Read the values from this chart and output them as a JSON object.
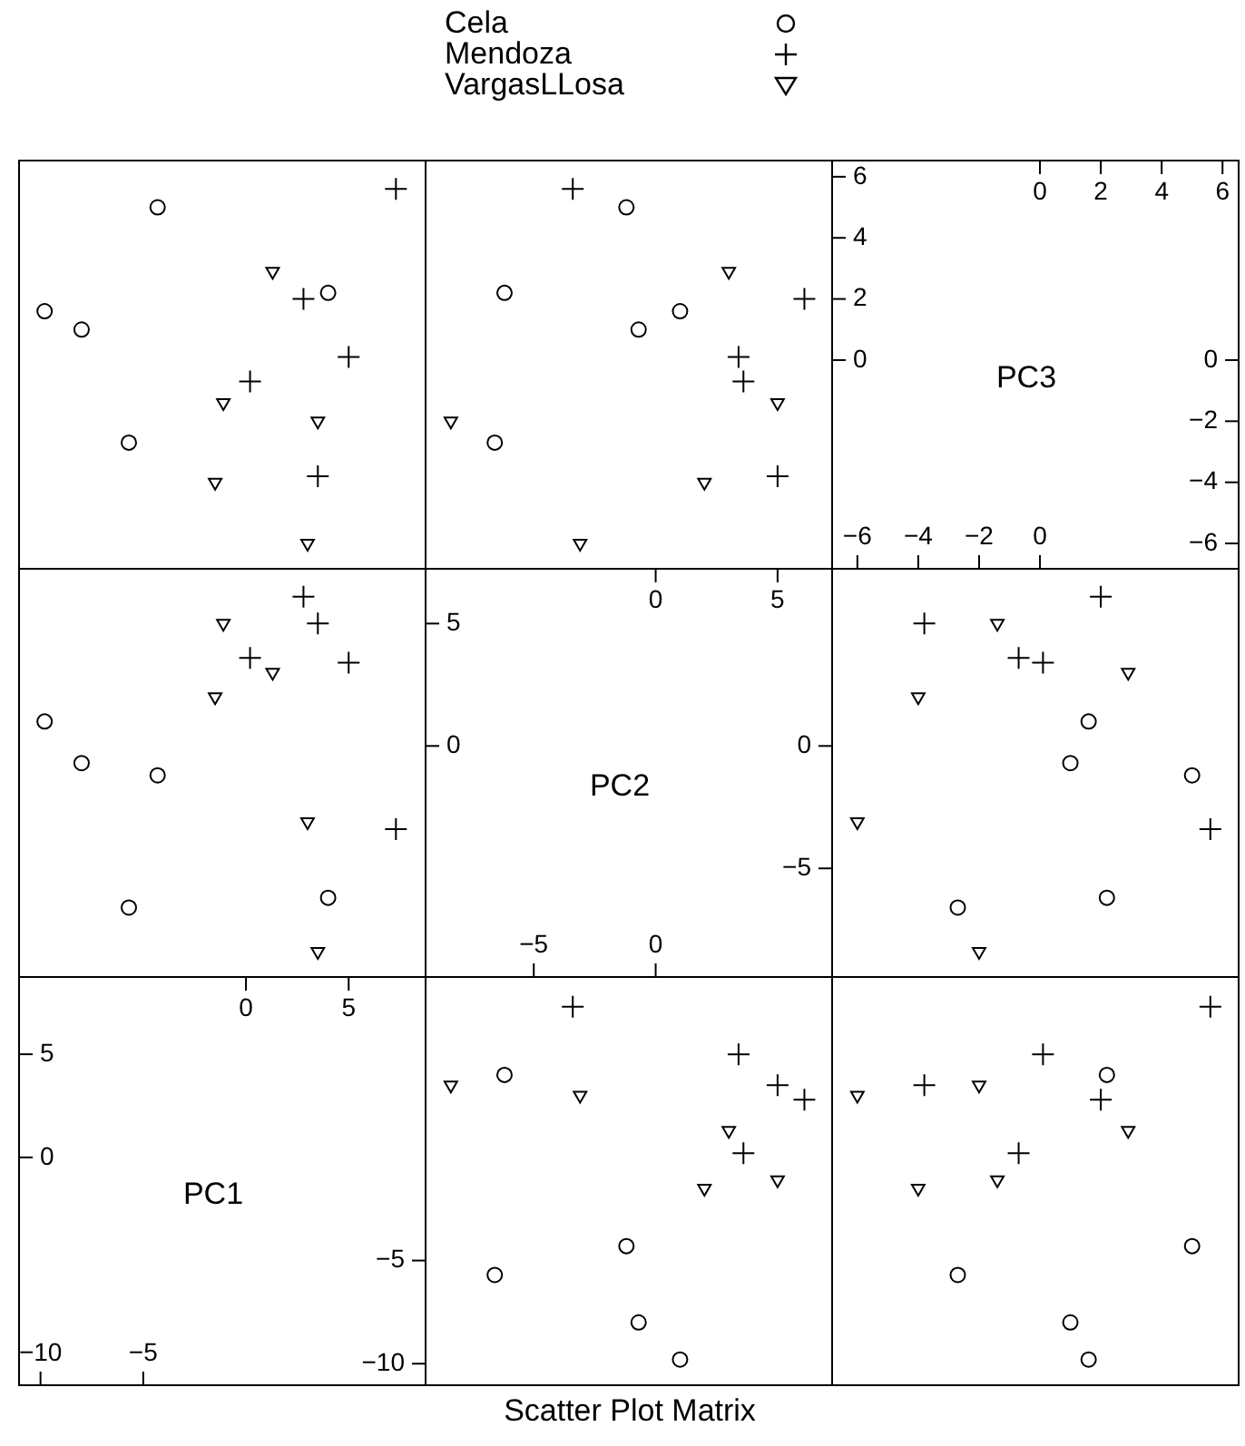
{
  "chart_data": [
    {
      "type": "scatter",
      "legend": "top",
      "xlim": [
        -11,
        8.7
      ],
      "ylim": [
        -6.8,
        6.5
      ],
      "series": [
        {
          "name": "Cela",
          "color": "#000000",
          "marker": "circle",
          "x": [
            -4.3,
            -9.8,
            -8.0,
            4.0,
            -5.7
          ],
          "values": [
            5.0,
            1.6,
            1.0,
            2.2,
            -2.7
          ]
        },
        {
          "name": "Mendoza",
          "color": "#000000",
          "marker": "cross",
          "x": [
            7.3,
            2.8,
            5.0,
            0.2,
            3.5
          ],
          "values": [
            5.6,
            2.0,
            0.1,
            -0.7,
            -3.8
          ]
        },
        {
          "name": "VargasLLosa",
          "color": "#000000",
          "marker": "triangle",
          "x": [
            1.3,
            -1.1,
            3.5,
            -1.5,
            3.0
          ],
          "values": [
            2.9,
            -1.4,
            -2.0,
            -4.0,
            -6.0
          ]
        }
      ]
    },
    {
      "type": "scatter",
      "xlim": [
        -9.4,
        7.2
      ],
      "ylim": [
        -6.8,
        6.5
      ],
      "series": [
        {
          "color": "#000000",
          "marker": "circle",
          "x": [
            -1.2,
            1.0,
            -0.7,
            -6.2,
            -6.6
          ],
          "values": [
            5.0,
            1.6,
            1.0,
            2.2,
            -2.7
          ]
        },
        {
          "color": "#000000",
          "marker": "cross",
          "x": [
            -3.4,
            6.1,
            3.4,
            3.6,
            5.0
          ],
          "values": [
            5.6,
            2.0,
            0.1,
            -0.7,
            -3.8
          ]
        },
        {
          "color": "#000000",
          "marker": "triangle",
          "x": [
            3.0,
            5.0,
            -8.4,
            2.0,
            -3.1
          ],
          "values": [
            2.9,
            -1.4,
            -2.0,
            -4.0,
            -6.0
          ]
        }
      ]
    },
    {
      "type": "scatter",
      "title": "PC3",
      "xlim": [
        -6.8,
        6.5
      ],
      "xticks": [
        -6,
        -4,
        -2,
        0
      ],
      "x2lim": [
        -6.8,
        6.5
      ],
      "x2ticks": [
        0,
        2,
        4,
        6
      ],
      "ylim": [
        -6.8,
        6.5
      ],
      "yticks": [
        0,
        2,
        4,
        6
      ],
      "y2lim": [
        -6.8,
        6.5
      ],
      "y2ticks": [
        -6,
        -4,
        -2,
        0
      ]
    },
    {
      "type": "scatter",
      "xlim": [
        -11,
        8.7
      ],
      "ylim": [
        -9.4,
        7.2
      ],
      "series": [
        {
          "color": "#000000",
          "marker": "circle",
          "x": [
            -4.3,
            -9.8,
            -8.0,
            4.0,
            -5.7
          ],
          "values": [
            -1.2,
            1.0,
            -0.7,
            -6.2,
            -6.6
          ]
        },
        {
          "color": "#000000",
          "marker": "cross",
          "x": [
            7.3,
            2.8,
            5.0,
            0.2,
            3.5
          ],
          "values": [
            -3.4,
            6.1,
            3.4,
            3.6,
            5.0
          ]
        },
        {
          "color": "#000000",
          "marker": "triangle",
          "x": [
            1.3,
            -1.1,
            3.5,
            -1.5,
            3.0
          ],
          "values": [
            3.0,
            5.0,
            -8.4,
            2.0,
            -3.1
          ]
        }
      ]
    },
    {
      "type": "scatter",
      "title": "PC2",
      "xlim": [
        -9.4,
        7.2
      ],
      "xticks": [
        -5,
        0
      ],
      "x2lim": [
        -9.4,
        7.2
      ],
      "x2ticks": [
        0,
        5
      ],
      "ylim": [
        -9.4,
        7.2
      ],
      "yticks": [
        0,
        5
      ],
      "y2lim": [
        -9.4,
        7.2
      ],
      "y2ticks": [
        -5,
        0
      ]
    },
    {
      "type": "scatter",
      "xlim": [
        -6.8,
        6.5
      ],
      "ylim": [
        -9.4,
        7.2
      ],
      "series": [
        {
          "color": "#000000",
          "marker": "circle",
          "x": [
            5.0,
            1.6,
            1.0,
            2.2,
            -2.7
          ],
          "values": [
            -1.2,
            1.0,
            -0.7,
            -6.2,
            -6.6
          ]
        },
        {
          "color": "#000000",
          "marker": "cross",
          "x": [
            5.6,
            2.0,
            0.1,
            -0.7,
            -3.8
          ],
          "values": [
            -3.4,
            6.1,
            3.4,
            3.6,
            5.0
          ]
        },
        {
          "color": "#000000",
          "marker": "triangle",
          "x": [
            2.9,
            -1.4,
            -2.0,
            -4.0,
            -6.0
          ],
          "values": [
            3.0,
            5.0,
            -8.4,
            2.0,
            -3.1
          ]
        }
      ]
    },
    {
      "type": "scatter",
      "title": "PC1",
      "xlim": [
        -11,
        8.7
      ],
      "xticks": [
        -10,
        -5
      ],
      "x2lim": [
        -11,
        8.7
      ],
      "x2ticks": [
        0,
        5
      ],
      "ylim": [
        -11,
        8.7
      ],
      "yticks": [
        0,
        5
      ],
      "y2lim": [
        -11,
        8.7
      ],
      "y2ticks": [
        -10,
        -5
      ]
    },
    {
      "type": "scatter",
      "xlabel": "Scatter Plot Matrix",
      "xlim": [
        -9.4,
        7.2
      ],
      "ylim": [
        -11,
        8.7
      ],
      "series": [
        {
          "color": "#000000",
          "marker": "circle",
          "x": [
            -1.2,
            1.0,
            -0.7,
            -6.2,
            -6.6
          ],
          "values": [
            -4.3,
            -9.8,
            -8.0,
            4.0,
            -5.7
          ]
        },
        {
          "color": "#000000",
          "marker": "cross",
          "x": [
            -3.4,
            6.1,
            3.4,
            3.6,
            5.0
          ],
          "values": [
            7.3,
            2.8,
            5.0,
            0.2,
            3.5
          ]
        },
        {
          "color": "#000000",
          "marker": "triangle",
          "x": [
            3.0,
            5.0,
            -8.4,
            2.0,
            -3.1
          ],
          "values": [
            1.3,
            -1.1,
            3.5,
            -1.5,
            3.0
          ]
        }
      ]
    },
    {
      "type": "scatter",
      "xlim": [
        -6.8,
        6.5
      ],
      "ylim": [
        -11,
        8.7
      ],
      "series": [
        {
          "color": "#000000",
          "marker": "circle",
          "x": [
            5.0,
            1.6,
            1.0,
            2.2,
            -2.7
          ],
          "values": [
            -4.3,
            -9.8,
            -8.0,
            4.0,
            -5.7
          ]
        },
        {
          "color": "#000000",
          "marker": "cross",
          "x": [
            5.6,
            2.0,
            0.1,
            -0.7,
            -3.8
          ],
          "values": [
            7.3,
            2.8,
            5.0,
            0.2,
            3.5
          ]
        },
        {
          "color": "#000000",
          "marker": "triangle",
          "x": [
            2.9,
            -1.4,
            -2.0,
            -4.0,
            -6.0
          ],
          "values": [
            1.3,
            -1.1,
            3.5,
            -1.5,
            3.0
          ]
        }
      ]
    }
  ]
}
